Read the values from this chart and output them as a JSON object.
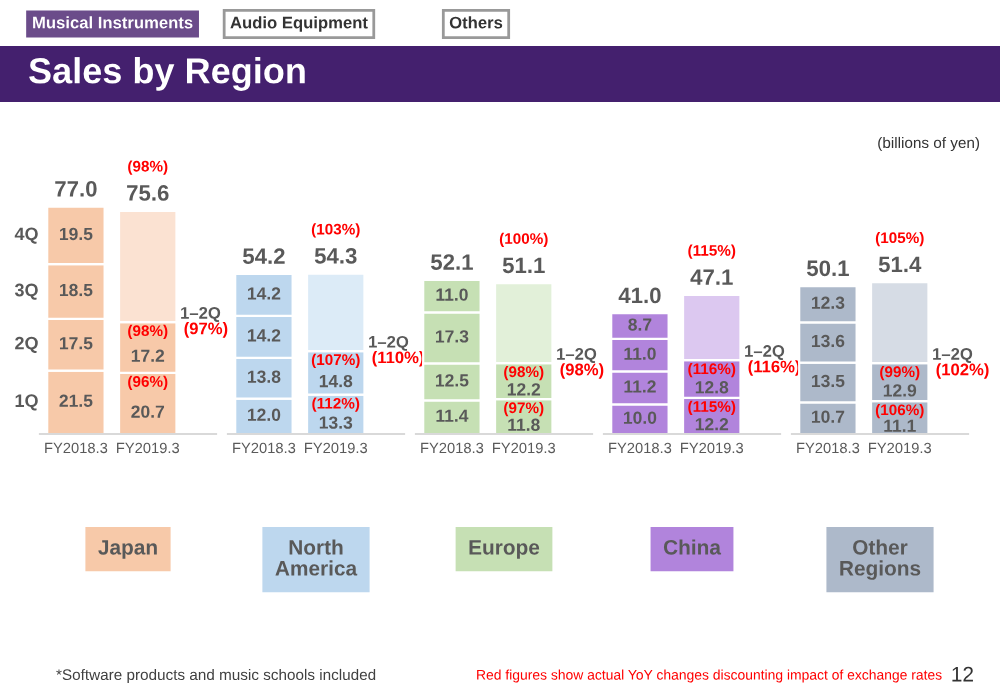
{
  "chart_data": [
    {
      "type": "bar",
      "title": "Sales by Region",
      "xlabel": "Japan",
      "stacked": true,
      "tick_labels": "x",
      "categories": [
        "FY2018.3",
        "FY2019.3"
      ],
      "series": [
        {
          "name": "1Q",
          "colors": [
            "#f7c9a9",
            "#f7c9a9"
          ],
          "values": [
            21.5,
            20.7
          ],
          "value_labels": [
            "21.5",
            "20.7"
          ]
        },
        {
          "name": "2Q",
          "colors": [
            "#f7c9a9",
            "#f7c9a9"
          ],
          "values": [
            17.5,
            17.2
          ],
          "value_labels": [
            "17.5",
            "17.2"
          ]
        },
        {
          "name": "3Q",
          "colors": [
            "#f7c9a9",
            "#f7c9a9"
          ],
          "values": [
            18.5,
            null
          ],
          "value_labels": [
            "18.5",
            null
          ]
        },
        {
          "name": "4Q",
          "colors": [
            "#f7c9a9",
            "#f7c9a9"
          ],
          "values": [
            19.5,
            null
          ],
          "value_labels": [
            "19.5",
            null
          ]
        },
        {
          "colors": [
            "#fbe2d2",
            "#fbe2d2"
          ],
          "values": [
            null,
            37.7
          ]
        }
      ],
      "totals": [
        "77.0",
        "75.6"
      ],
      "annotations": [
        "Musical Instruments",
        "Audio Equipment",
        "Others",
        "(billions of yen)",
        "*Software products and music schools included",
        "Red figures show actual YoY changes discounting impact of exchange rates",
        "12",
        {
          "text": "(98%)",
          "x": "FY2019.3",
          "y": 75.6
        },
        {
          "text": "(96%)",
          "x": "FY2019.3",
          "y": 20.7
        },
        {
          "text": "(98%)",
          "x": "FY2019.3",
          "y": 37.9
        },
        {
          "text": "1–2Q\n(97%)",
          "x": "FY2019.3",
          "y": 37.9
        }
      ]
    },
    {
      "type": "bar",
      "xlabel": "North\nAmerica",
      "stacked": true,
      "tick_labels": "x",
      "categories": [
        "FY2018.3",
        "FY2019.3"
      ],
      "series": [
        {
          "colors": [
            "#bdd7ee",
            "#bdd7ee"
          ],
          "values": [
            12.0,
            13.3
          ],
          "value_labels": [
            "12.0",
            "13.3"
          ]
        },
        {
          "colors": [
            "#bdd7ee",
            "#bdd7ee"
          ],
          "values": [
            13.8,
            14.8
          ],
          "value_labels": [
            "13.8",
            "14.8"
          ]
        },
        {
          "colors": [
            "#bdd7ee",
            "#bdd7ee"
          ],
          "values": [
            14.2,
            null
          ],
          "value_labels": [
            "14.2",
            null
          ]
        },
        {
          "colors": [
            "#bdd7ee",
            "#bdd7ee"
          ],
          "values": [
            14.2,
            null
          ],
          "value_labels": [
            "14.2",
            null
          ]
        },
        {
          "colors": [
            "#dcebf7",
            "#dcebf7"
          ],
          "values": [
            null,
            26.2
          ]
        }
      ],
      "totals": [
        "54.2",
        "54.3"
      ],
      "annotations": [
        {
          "text": "(103%)",
          "x": "FY2019.3",
          "y": 54.3
        },
        {
          "text": "(112%)",
          "x": "FY2019.3",
          "y": 13.3
        },
        {
          "text": "(107%)",
          "x": "FY2019.3",
          "y": 28.1
        },
        {
          "text": "1–2Q\n(110%)",
          "x": "FY2019.3",
          "y": 28.1
        }
      ]
    },
    {
      "type": "bar",
      "xlabel": "Europe",
      "stacked": true,
      "tick_labels": "x",
      "categories": [
        "FY2018.3",
        "FY2019.3"
      ],
      "series": [
        {
          "colors": [
            "#c6e0b4",
            "#c6e0b4"
          ],
          "values": [
            11.4,
            11.8
          ],
          "value_labels": [
            "11.4",
            "11.8"
          ]
        },
        {
          "colors": [
            "#c6e0b4",
            "#c6e0b4"
          ],
          "values": [
            12.5,
            12.2
          ],
          "value_labels": [
            "12.5",
            "12.2"
          ]
        },
        {
          "colors": [
            "#c6e0b4",
            "#c6e0b4"
          ],
          "values": [
            17.3,
            null
          ],
          "value_labels": [
            "17.3",
            null
          ]
        },
        {
          "colors": [
            "#c6e0b4",
            "#c6e0b4"
          ],
          "values": [
            11.0,
            null
          ],
          "value_labels": [
            "11.0",
            null
          ]
        },
        {
          "colors": [
            "#e2f0d9",
            "#e2f0d9"
          ],
          "values": [
            null,
            27.1
          ]
        }
      ],
      "totals": [
        "52.1",
        "51.1"
      ],
      "annotations": [
        {
          "text": "(100%)",
          "x": "FY2019.3",
          "y": 51.1
        },
        {
          "text": "(97%)",
          "x": "FY2019.3",
          "y": 11.8
        },
        {
          "text": "(98%)",
          "x": "FY2019.3",
          "y": 24.0
        },
        {
          "text": "1–2Q\n(98%)",
          "x": "FY2019.3",
          "y": 24.0
        }
      ]
    },
    {
      "type": "bar",
      "xlabel": "China",
      "stacked": true,
      "tick_labels": "x",
      "categories": [
        "FY2018.3",
        "FY2019.3"
      ],
      "series": [
        {
          "colors": [
            "#b184dc",
            "#b184dc"
          ],
          "values": [
            10.0,
            12.2
          ],
          "value_labels": [
            "10.0",
            "12.2"
          ]
        },
        {
          "colors": [
            "#b184dc",
            "#b184dc"
          ],
          "values": [
            11.2,
            12.8
          ],
          "value_labels": [
            "11.2",
            "12.8"
          ]
        },
        {
          "colors": [
            "#b184dc",
            "#b184dc"
          ],
          "values": [
            11.0,
            null
          ],
          "value_labels": [
            "11.0",
            null
          ]
        },
        {
          "colors": [
            "#b184dc",
            "#b184dc"
          ],
          "values": [
            8.7,
            null
          ],
          "value_labels": [
            "8.7",
            null
          ]
        },
        {
          "colors": [
            "#dcc8f0",
            "#dcc8f0"
          ],
          "values": [
            null,
            22.1
          ]
        }
      ],
      "totals": [
        "41.0",
        "47.1"
      ],
      "annotations": [
        {
          "text": "(115%)",
          "x": "FY2019.3",
          "y": 47.1
        },
        {
          "text": "(115%)",
          "x": "FY2019.3",
          "y": 12.2
        },
        {
          "text": "(116%)",
          "x": "FY2019.3",
          "y": 25.0
        },
        {
          "text": "1–2Q\n(116%)",
          "x": "FY2019.3",
          "y": 25.0
        }
      ]
    },
    {
      "type": "bar",
      "xlabel": "Other\nRegions",
      "stacked": true,
      "tick_labels": "x",
      "categories": [
        "FY2018.3",
        "FY2019.3"
      ],
      "series": [
        {
          "colors": [
            "#adb9ca",
            "#adb9ca"
          ],
          "values": [
            10.7,
            11.1
          ],
          "value_labels": [
            "10.7",
            "11.1"
          ]
        },
        {
          "colors": [
            "#adb9ca",
            "#adb9ca"
          ],
          "values": [
            13.5,
            12.9
          ],
          "value_labels": [
            "13.5",
            "12.9"
          ]
        },
        {
          "colors": [
            "#adb9ca",
            "#adb9ca"
          ],
          "values": [
            13.6,
            null
          ],
          "value_labels": [
            "13.6",
            null
          ]
        },
        {
          "colors": [
            "#adb9ca",
            "#adb9ca"
          ],
          "values": [
            12.3,
            null
          ],
          "value_labels": [
            "12.3",
            null
          ]
        },
        {
          "colors": [
            "#d6dce5",
            "#d6dce5"
          ],
          "values": [
            null,
            27.4
          ]
        }
      ],
      "totals": [
        "50.1",
        "51.4"
      ],
      "annotations": [
        {
          "text": "(105%)",
          "x": "FY2019.3",
          "y": 51.4
        },
        {
          "text": "(106%)",
          "x": "FY2019.3",
          "y": 11.1
        },
        {
          "text": "(99%)",
          "x": "FY2019.3",
          "y": 24.0
        },
        {
          "text": "1–2Q\n(102%)",
          "x": "FY2019.3",
          "y": 24.0
        }
      ]
    }
  ]
}
